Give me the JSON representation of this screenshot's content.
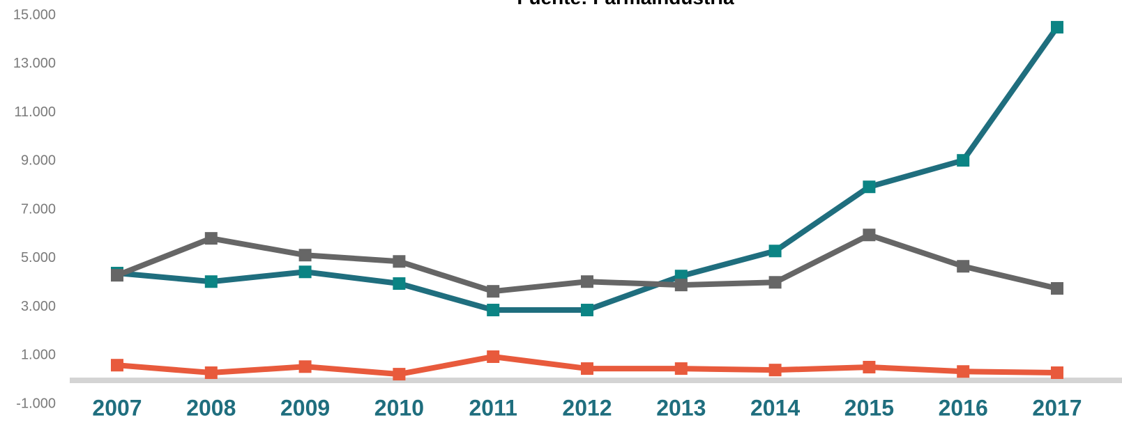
{
  "chart_data": {
    "type": "line",
    "title": "Fuente: Farmaindustria",
    "categories": [
      "2007",
      "2008",
      "2009",
      "2010",
      "2011",
      "2012",
      "2013",
      "2014",
      "2015",
      "2016",
      "2017"
    ],
    "series": [
      {
        "color": "#1f6e7e",
        "marker_color": "#0b8484",
        "values": [
          4390,
          4040,
          4440,
          3960,
          2870,
          2870,
          4270,
          5300,
          7940,
          9030,
          14510
        ]
      },
      {
        "color": "#666666",
        "marker_color": "#666666",
        "values": [
          4300,
          5820,
          5130,
          4870,
          3640,
          4040,
          3900,
          4010,
          5960,
          4670,
          3760
        ]
      },
      {
        "color": "#e85a3c",
        "marker_color": "#e85a3c",
        "values": [
          600,
          290,
          540,
          230,
          950,
          460,
          460,
          400,
          520,
          340,
          290
        ]
      }
    ],
    "ylim": [
      -1000,
      15000
    ],
    "yticks": [
      {
        "value": -1000,
        "label": "-1.000"
      },
      {
        "value": 1000,
        "label": "1.000"
      },
      {
        "value": 3000,
        "label": "3.000"
      },
      {
        "value": 5000,
        "label": "5.000"
      },
      {
        "value": 7000,
        "label": "7.000"
      },
      {
        "value": 9000,
        "label": "9.000"
      },
      {
        "value": 11000,
        "label": "11.000"
      },
      {
        "value": 13000,
        "label": "13.000"
      },
      {
        "value": 15000,
        "label": "15.000"
      }
    ],
    "grid": false
  }
}
